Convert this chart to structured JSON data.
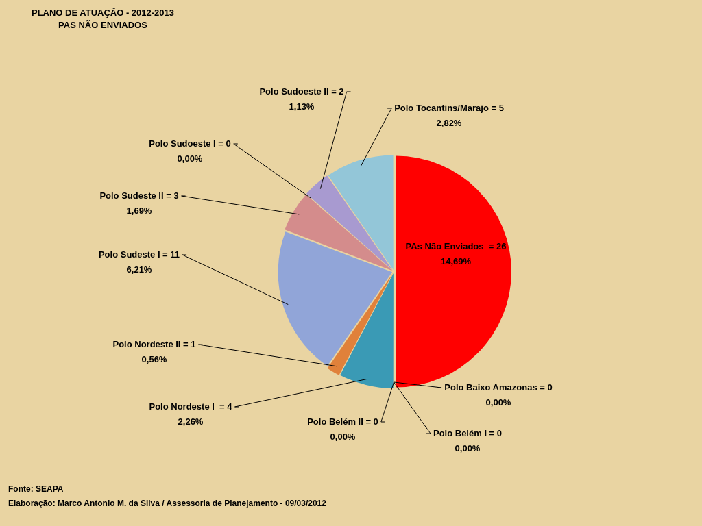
{
  "chart_data": {
    "type": "pie",
    "title": "PLANO DE ATUAÇÃO - 2012-2013",
    "subtitle": "PAS  NÃO ENVIADOS",
    "categories": [
      "PAs Não Enviados  = 26",
      "Polo Baixo Amazonas = 0",
      "Polo Belém I = 0",
      "Polo Belém II = 0",
      "Polo Nordeste I  = 4",
      "Polo Nordeste II = 1",
      "Polo Sudeste I = 11",
      "Polo Sudeste II = 3",
      "Polo Sudoeste I = 0",
      "Polo Sudoeste II = 2",
      "Polo Tocantins/Marajo = 5"
    ],
    "values": [
      26,
      0,
      0,
      0,
      4,
      1,
      11,
      3,
      0,
      2,
      5
    ],
    "colors": [
      "#ff0000",
      "#4f81bd",
      "#9bbb59",
      "#8064a2",
      "#3a9ab5",
      "#e0813a",
      "#91a5d8",
      "#d48c8c",
      "#6f8f3a",
      "#a89ad0",
      "#93c6d8"
    ],
    "legend": false,
    "annotations": [
      {
        "text": "14,69%",
        "x": "PAs Não Enviados  = 26"
      },
      {
        "text": "0,00%",
        "x": "Polo Baixo Amazonas = 0"
      },
      {
        "text": "0,00%",
        "x": "Polo Belém I = 0"
      },
      {
        "text": "0,00%",
        "x": "Polo Belém II = 0"
      },
      {
        "text": "2,26%",
        "x": "Polo Nordeste I  = 4"
      },
      {
        "text": "0,56%",
        "x": "Polo Nordeste II = 1"
      },
      {
        "text": "6,21%",
        "x": "Polo Sudeste I = 11"
      },
      {
        "text": "1,69%",
        "x": "Polo Sudeste II = 3"
      },
      {
        "text": "0,00%",
        "x": "Polo Sudoeste I = 0"
      },
      {
        "text": "1,13%",
        "x": "Polo Sudoeste II = 2"
      },
      {
        "text": "2,82%",
        "x": "Polo Tocantins/Marajo = 5"
      },
      "Fonte: SEAPA",
      "Elaboração:  Marco Antonio M. da Silva / Assessoria de Planejamento  - 09/03/2012"
    ]
  }
}
